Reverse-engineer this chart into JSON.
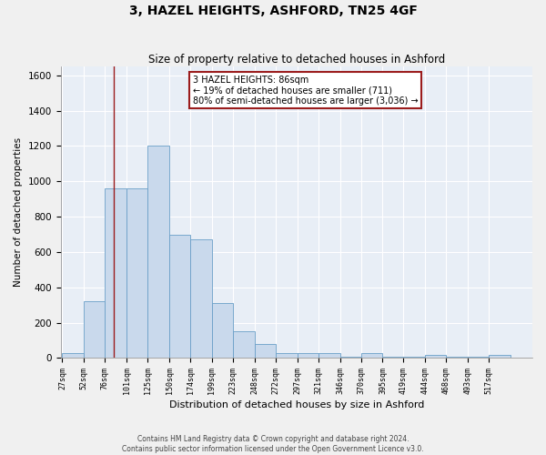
{
  "title": "3, HAZEL HEIGHTS, ASHFORD, TN25 4GF",
  "subtitle": "Size of property relative to detached houses in Ashford",
  "xlabel": "Distribution of detached houses by size in Ashford",
  "ylabel": "Number of detached properties",
  "footer_line1": "Contains HM Land Registry data © Crown copyright and database right 2024.",
  "footer_line2": "Contains public sector information licensed under the Open Government Licence v3.0.",
  "bin_labels": [
    "27sqm",
    "52sqm",
    "76sqm",
    "101sqm",
    "125sqm",
    "150sqm",
    "174sqm",
    "199sqm",
    "223sqm",
    "248sqm",
    "272sqm",
    "297sqm",
    "321sqm",
    "346sqm",
    "370sqm",
    "395sqm",
    "419sqm",
    "444sqm",
    "468sqm",
    "493sqm",
    "517sqm"
  ],
  "bin_edges": [
    27,
    52,
    76,
    101,
    125,
    150,
    174,
    199,
    223,
    248,
    272,
    297,
    321,
    346,
    370,
    395,
    419,
    444,
    468,
    493,
    517,
    542
  ],
  "bar_heights": [
    30,
    320,
    960,
    960,
    1200,
    700,
    670,
    310,
    150,
    80,
    25,
    25,
    25,
    5,
    25,
    5,
    5,
    15,
    5,
    5,
    15
  ],
  "bar_color": "#c9d9ec",
  "bar_edge_color": "#6a9fc8",
  "background_color": "#e8eef6",
  "grid_color": "#ffffff",
  "property_line_x": 86,
  "property_line_color": "#9b1c1c",
  "annotation_text": "3 HAZEL HEIGHTS: 86sqm\n← 19% of detached houses are smaller (711)\n80% of semi-detached houses are larger (3,036) →",
  "annotation_box_color": "#9b1c1c",
  "ylim": [
    0,
    1650
  ],
  "yticks": [
    0,
    200,
    400,
    600,
    800,
    1000,
    1200,
    1400,
    1600
  ],
  "figsize": [
    6.0,
    5.0
  ],
  "dpi": 100
}
